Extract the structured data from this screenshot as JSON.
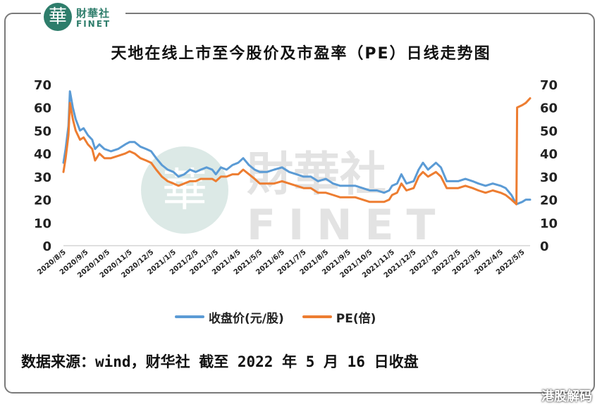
{
  "logo": {
    "seal": "華",
    "cn": "財華社",
    "en": "FINET"
  },
  "watermark": {
    "cn": "財華社",
    "en": "FINET",
    "corner": "港股解码"
  },
  "chart_data": {
    "type": "line",
    "title": "天地在线上市至今股价及市盈率（PE）日线走势图",
    "source": "数据来源：wind，财华社 截至 2022 年 5 月 16 日收盘",
    "x_ticks": [
      "2020/8/5",
      "2020/9/5",
      "2020/10/5",
      "2020/11/5",
      "2020/12/5",
      "2021/1/5",
      "2021/2/5",
      "2021/3/5",
      "2021/4/5",
      "2021/5/5",
      "2021/6/5",
      "2021/7/5",
      "2021/8/5",
      "2021/9/5",
      "2021/10/5",
      "2021/11/5",
      "2021/12/5",
      "2022/1/5",
      "2022/2/5",
      "2022/3/5",
      "2022/4/5",
      "2022/5/5"
    ],
    "y_left": {
      "range": [
        0,
        70
      ],
      "ticks": [
        "0",
        "10",
        "20",
        "30",
        "40",
        "50",
        "60",
        "70"
      ]
    },
    "y_right": {
      "range": [
        0,
        70
      ],
      "ticks": [
        "0",
        "10",
        "20",
        "30",
        "40",
        "50",
        "60",
        "70"
      ]
    },
    "legend_position": "bottom",
    "grid": false,
    "series": [
      {
        "name": "收盘价(元/股)",
        "color": "#5b9bd5",
        "axis": "left",
        "points": [
          [
            "2020-08-05",
            36
          ],
          [
            "2020-08-08",
            42
          ],
          [
            "2020-08-12",
            52
          ],
          [
            "2020-08-14",
            67
          ],
          [
            "2020-08-18",
            60
          ],
          [
            "2020-08-22",
            55
          ],
          [
            "2020-08-28",
            50
          ],
          [
            "2020-09-02",
            51
          ],
          [
            "2020-09-08",
            48
          ],
          [
            "2020-09-14",
            46
          ],
          [
            "2020-09-18",
            42
          ],
          [
            "2020-09-24",
            44
          ],
          [
            "2020-10-01",
            42
          ],
          [
            "2020-10-10",
            41
          ],
          [
            "2020-10-20",
            42
          ],
          [
            "2020-10-30",
            44
          ],
          [
            "2020-11-05",
            45
          ],
          [
            "2020-11-12",
            45
          ],
          [
            "2020-11-20",
            43
          ],
          [
            "2020-11-28",
            42
          ],
          [
            "2020-12-05",
            41
          ],
          [
            "2020-12-12",
            38
          ],
          [
            "2020-12-20",
            35
          ],
          [
            "2020-12-28",
            33
          ],
          [
            "2021-01-05",
            32
          ],
          [
            "2021-01-12",
            30
          ],
          [
            "2021-01-20",
            31
          ],
          [
            "2021-01-28",
            33
          ],
          [
            "2021-02-05",
            32
          ],
          [
            "2021-02-12",
            33
          ],
          [
            "2021-02-20",
            34
          ],
          [
            "2021-02-28",
            33
          ],
          [
            "2021-03-05",
            31
          ],
          [
            "2021-03-12",
            34
          ],
          [
            "2021-03-20",
            33
          ],
          [
            "2021-03-28",
            35
          ],
          [
            "2021-04-05",
            36
          ],
          [
            "2021-04-12",
            38
          ],
          [
            "2021-04-20",
            35
          ],
          [
            "2021-04-28",
            33
          ],
          [
            "2021-05-05",
            32
          ],
          [
            "2021-05-15",
            32
          ],
          [
            "2021-05-25",
            33
          ],
          [
            "2021-06-05",
            34
          ],
          [
            "2021-06-15",
            32
          ],
          [
            "2021-06-25",
            31
          ],
          [
            "2021-07-05",
            30
          ],
          [
            "2021-07-15",
            30
          ],
          [
            "2021-07-25",
            28
          ],
          [
            "2021-08-05",
            29
          ],
          [
            "2021-08-15",
            27
          ],
          [
            "2021-08-25",
            26
          ],
          [
            "2021-09-05",
            26
          ],
          [
            "2021-09-15",
            26
          ],
          [
            "2021-09-25",
            25
          ],
          [
            "2021-10-05",
            24
          ],
          [
            "2021-10-15",
            24
          ],
          [
            "2021-10-25",
            23
          ],
          [
            "2021-11-01",
            24
          ],
          [
            "2021-11-05",
            26
          ],
          [
            "2021-11-12",
            27
          ],
          [
            "2021-11-18",
            31
          ],
          [
            "2021-11-25",
            27
          ],
          [
            "2021-12-05",
            28
          ],
          [
            "2021-12-12",
            33
          ],
          [
            "2021-12-18",
            36
          ],
          [
            "2021-12-25",
            33
          ],
          [
            "2022-01-05",
            36
          ],
          [
            "2022-01-12",
            34
          ],
          [
            "2022-01-20",
            28
          ],
          [
            "2022-01-28",
            28
          ],
          [
            "2022-02-05",
            28
          ],
          [
            "2022-02-15",
            29
          ],
          [
            "2022-02-25",
            28
          ],
          [
            "2022-03-05",
            27
          ],
          [
            "2022-03-15",
            26
          ],
          [
            "2022-03-25",
            27
          ],
          [
            "2022-04-05",
            26
          ],
          [
            "2022-04-12",
            25
          ],
          [
            "2022-04-20",
            22
          ],
          [
            "2022-04-27",
            18
          ],
          [
            "2022-05-05",
            19
          ],
          [
            "2022-05-10",
            20
          ],
          [
            "2022-05-16",
            20
          ]
        ]
      },
      {
        "name": "PE(倍)",
        "color": "#ed7d31",
        "axis": "right",
        "points": [
          [
            "2020-08-05",
            32
          ],
          [
            "2020-08-08",
            38
          ],
          [
            "2020-08-12",
            48
          ],
          [
            "2020-08-14",
            62
          ],
          [
            "2020-08-18",
            55
          ],
          [
            "2020-08-22",
            50
          ],
          [
            "2020-08-28",
            46
          ],
          [
            "2020-09-02",
            47
          ],
          [
            "2020-09-08",
            44
          ],
          [
            "2020-09-14",
            42
          ],
          [
            "2020-09-18",
            37
          ],
          [
            "2020-09-24",
            40
          ],
          [
            "2020-10-01",
            38
          ],
          [
            "2020-10-10",
            38
          ],
          [
            "2020-10-20",
            39
          ],
          [
            "2020-10-30",
            40
          ],
          [
            "2020-11-05",
            41
          ],
          [
            "2020-11-12",
            40
          ],
          [
            "2020-11-20",
            38
          ],
          [
            "2020-11-28",
            37
          ],
          [
            "2020-12-05",
            36
          ],
          [
            "2020-12-12",
            33
          ],
          [
            "2020-12-20",
            30
          ],
          [
            "2020-12-28",
            28
          ],
          [
            "2021-01-05",
            27
          ],
          [
            "2021-01-12",
            26
          ],
          [
            "2021-01-20",
            27
          ],
          [
            "2021-01-28",
            28
          ],
          [
            "2021-02-05",
            28
          ],
          [
            "2021-02-12",
            29
          ],
          [
            "2021-02-20",
            29
          ],
          [
            "2021-02-28",
            29
          ],
          [
            "2021-03-05",
            28
          ],
          [
            "2021-03-12",
            30
          ],
          [
            "2021-03-20",
            30
          ],
          [
            "2021-03-28",
            31
          ],
          [
            "2021-04-05",
            31
          ],
          [
            "2021-04-12",
            33
          ],
          [
            "2021-04-20",
            31
          ],
          [
            "2021-04-28",
            29
          ],
          [
            "2021-05-05",
            27
          ],
          [
            "2021-05-15",
            27
          ],
          [
            "2021-05-25",
            27
          ],
          [
            "2021-06-05",
            28
          ],
          [
            "2021-06-15",
            27
          ],
          [
            "2021-06-25",
            26
          ],
          [
            "2021-07-05",
            25
          ],
          [
            "2021-07-15",
            25
          ],
          [
            "2021-07-25",
            23
          ],
          [
            "2021-08-05",
            23
          ],
          [
            "2021-08-15",
            22
          ],
          [
            "2021-08-25",
            21
          ],
          [
            "2021-09-05",
            21
          ],
          [
            "2021-09-15",
            21
          ],
          [
            "2021-09-25",
            20
          ],
          [
            "2021-10-05",
            19
          ],
          [
            "2021-10-15",
            19
          ],
          [
            "2021-10-25",
            19
          ],
          [
            "2021-11-01",
            20
          ],
          [
            "2021-11-05",
            22
          ],
          [
            "2021-11-12",
            23
          ],
          [
            "2021-11-18",
            27
          ],
          [
            "2021-11-25",
            24
          ],
          [
            "2021-12-05",
            25
          ],
          [
            "2021-12-12",
            30
          ],
          [
            "2021-12-18",
            32
          ],
          [
            "2021-12-25",
            30
          ],
          [
            "2022-01-05",
            32
          ],
          [
            "2022-01-12",
            30
          ],
          [
            "2022-01-20",
            25
          ],
          [
            "2022-01-28",
            25
          ],
          [
            "2022-02-05",
            25
          ],
          [
            "2022-02-15",
            26
          ],
          [
            "2022-02-25",
            25
          ],
          [
            "2022-03-05",
            24
          ],
          [
            "2022-03-15",
            23
          ],
          [
            "2022-03-25",
            24
          ],
          [
            "2022-04-05",
            23
          ],
          [
            "2022-04-12",
            22
          ],
          [
            "2022-04-20",
            20
          ],
          [
            "2022-04-27",
            18
          ],
          [
            "2022-04-28",
            60
          ],
          [
            "2022-05-05",
            61
          ],
          [
            "2022-05-10",
            62
          ],
          [
            "2022-05-16",
            64
          ]
        ]
      }
    ]
  }
}
